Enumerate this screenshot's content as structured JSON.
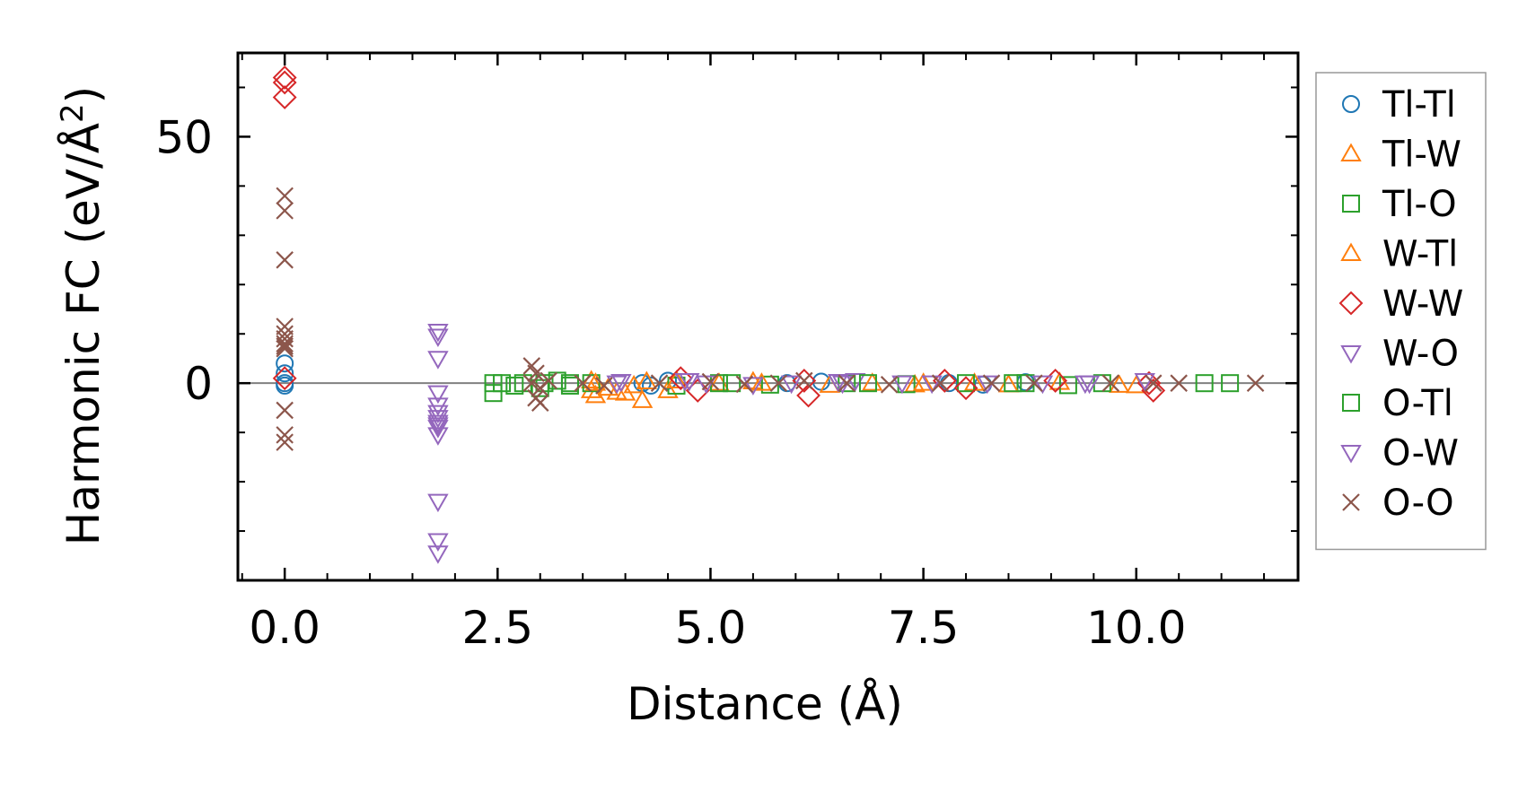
{
  "chart_data": {
    "type": "scatter",
    "title": "",
    "xlabel": "Distance (Å)",
    "ylabel_main": "Harmonic FC (eV/Å",
    "ylabel_sup": "2",
    "ylabel_close": ")",
    "xlim": [
      -0.55,
      11.9
    ],
    "ylim": [
      -40,
      67
    ],
    "x_ticks": [
      0.0,
      2.5,
      5.0,
      7.5,
      10.0
    ],
    "x_tick_labels": [
      "0.0",
      "2.5",
      "5.0",
      "7.5",
      "10.0"
    ],
    "y_ticks": [
      0,
      50
    ],
    "y_tick_labels": [
      "0",
      "50"
    ],
    "legend_position": "outside-right",
    "reference_line_y": 0,
    "series": [
      {
        "name": "Tl-Tl",
        "marker": "circle",
        "color": "#1f77b4",
        "points": [
          [
            0,
            4
          ],
          [
            0,
            2
          ],
          [
            0,
            0
          ],
          [
            0,
            -0.5
          ],
          [
            4.2,
            0
          ],
          [
            4.3,
            -0.5
          ],
          [
            4.5,
            0.5
          ],
          [
            5.9,
            0
          ],
          [
            6.3,
            0.3
          ],
          [
            7.8,
            0
          ],
          [
            8.2,
            -0.3
          ],
          [
            8.7,
            0.2
          ]
        ]
      },
      {
        "name": "Tl-W",
        "marker": "triangle-up",
        "color": "#ff7f0e",
        "points": [
          [
            3.6,
            0.5
          ],
          [
            3.6,
            -1.5
          ],
          [
            3.65,
            -2.5
          ],
          [
            3.9,
            -1.8
          ],
          [
            4.0,
            -2
          ],
          [
            4.2,
            -3.5
          ],
          [
            4.25,
            0.3
          ],
          [
            4.5,
            -1.5
          ],
          [
            5.1,
            0
          ],
          [
            5.5,
            0.3
          ],
          [
            6.9,
            0
          ],
          [
            7.4,
            -0.3
          ],
          [
            8.1,
            0
          ],
          [
            9.1,
            0.2
          ],
          [
            9.8,
            -0.4
          ]
        ]
      },
      {
        "name": "Tl-O",
        "marker": "square",
        "color": "#2ca02c",
        "points": [
          [
            2.45,
            0
          ],
          [
            2.45,
            -2
          ],
          [
            2.7,
            -0.5
          ],
          [
            2.8,
            0
          ],
          [
            3.0,
            -1
          ],
          [
            3.2,
            0.5
          ],
          [
            3.35,
            -0.5
          ],
          [
            3.6,
            0
          ],
          [
            4.6,
            -0.5
          ],
          [
            5.1,
            0
          ],
          [
            5.7,
            -0.3
          ],
          [
            6.6,
            0
          ],
          [
            7.3,
            -0.2
          ],
          [
            8.0,
            0
          ],
          [
            8.7,
            0
          ],
          [
            9.2,
            -0.4
          ],
          [
            9.6,
            0
          ],
          [
            10.8,
            0
          ],
          [
            11.1,
            0
          ]
        ]
      },
      {
        "name": "W-Tl",
        "marker": "triangle-up",
        "color": "#ff7f0e",
        "points": [
          [
            3.65,
            0
          ],
          [
            3.8,
            -1
          ],
          [
            4.1,
            -0.5
          ],
          [
            4.6,
            0.5
          ],
          [
            5.6,
            0
          ],
          [
            6.4,
            -0.4
          ],
          [
            7.5,
            0
          ],
          [
            8.5,
            -0.3
          ],
          [
            10.0,
            -0.5
          ]
        ]
      },
      {
        "name": "W-W",
        "marker": "diamond",
        "color": "#d62728",
        "points": [
          [
            0,
            62
          ],
          [
            0,
            61
          ],
          [
            0,
            58
          ],
          [
            0,
            1
          ],
          [
            4.65,
            1
          ],
          [
            4.85,
            -1.5
          ],
          [
            6.1,
            0.5
          ],
          [
            6.15,
            -2.5
          ],
          [
            7.75,
            0.5
          ],
          [
            8.0,
            -1
          ],
          [
            9.05,
            0.5
          ],
          [
            10.15,
            0
          ],
          [
            10.2,
            -1.5
          ]
        ]
      },
      {
        "name": "W-O",
        "marker": "triangle-down",
        "color": "#9467bd",
        "points": [
          [
            1.8,
            10.5
          ],
          [
            1.8,
            9.5
          ],
          [
            1.8,
            5
          ],
          [
            1.8,
            -2
          ],
          [
            1.8,
            -4.5
          ],
          [
            1.8,
            -6
          ],
          [
            1.8,
            -7
          ],
          [
            1.8,
            -8
          ],
          [
            1.8,
            -8.5
          ],
          [
            1.8,
            -9
          ],
          [
            1.8,
            -10.5
          ],
          [
            1.8,
            -24
          ],
          [
            1.8,
            -32
          ],
          [
            1.8,
            -34.5
          ],
          [
            3.9,
            0
          ],
          [
            4.7,
            0.5
          ],
          [
            4.95,
            0
          ],
          [
            5.5,
            -0.3
          ],
          [
            6.5,
            0.3
          ],
          [
            6.7,
            0.5
          ],
          [
            7.6,
            0
          ],
          [
            8.9,
            0
          ],
          [
            9.4,
            0
          ],
          [
            10.1,
            0.5
          ]
        ]
      },
      {
        "name": "O-Tl",
        "marker": "square",
        "color": "#2ca02c",
        "points": [
          [
            2.55,
            0
          ],
          [
            3.05,
            0
          ],
          [
            3.35,
            0
          ],
          [
            5.25,
            0
          ],
          [
            6.85,
            0
          ],
          [
            8.55,
            0
          ]
        ]
      },
      {
        "name": "O-W",
        "marker": "triangle-down",
        "color": "#9467bd",
        "points": [
          [
            3.95,
            0.3
          ],
          [
            4.75,
            0.5
          ],
          [
            5.95,
            0
          ],
          [
            6.55,
            0
          ],
          [
            7.25,
            0
          ],
          [
            8.25,
            0
          ],
          [
            9.45,
            0
          ]
        ]
      },
      {
        "name": "O-O",
        "marker": "x",
        "color": "#8c564b",
        "points": [
          [
            0,
            38
          ],
          [
            0,
            35
          ],
          [
            0,
            25
          ],
          [
            0,
            11.5
          ],
          [
            0,
            10
          ],
          [
            0,
            9
          ],
          [
            0,
            8
          ],
          [
            0,
            7.5
          ],
          [
            0,
            7
          ],
          [
            0,
            -5.5
          ],
          [
            0,
            -10.5
          ],
          [
            0,
            -12
          ],
          [
            2.9,
            3.5
          ],
          [
            2.95,
            2
          ],
          [
            2.9,
            0
          ],
          [
            3.0,
            -1
          ],
          [
            2.95,
            -3
          ],
          [
            3.0,
            -4
          ],
          [
            3.1,
            0.5
          ],
          [
            3.5,
            0
          ],
          [
            3.75,
            -0.5
          ],
          [
            4.4,
            0
          ],
          [
            5.0,
            0.3
          ],
          [
            5.4,
            -0.2
          ],
          [
            5.8,
            0
          ],
          [
            6.1,
            0.5
          ],
          [
            6.6,
            0
          ],
          [
            7.1,
            -0.3
          ],
          [
            7.7,
            0
          ],
          [
            8.3,
            0
          ],
          [
            8.8,
            0
          ],
          [
            9.7,
            0
          ],
          [
            10.2,
            0
          ],
          [
            10.5,
            0
          ],
          [
            11.4,
            0
          ]
        ]
      }
    ]
  }
}
